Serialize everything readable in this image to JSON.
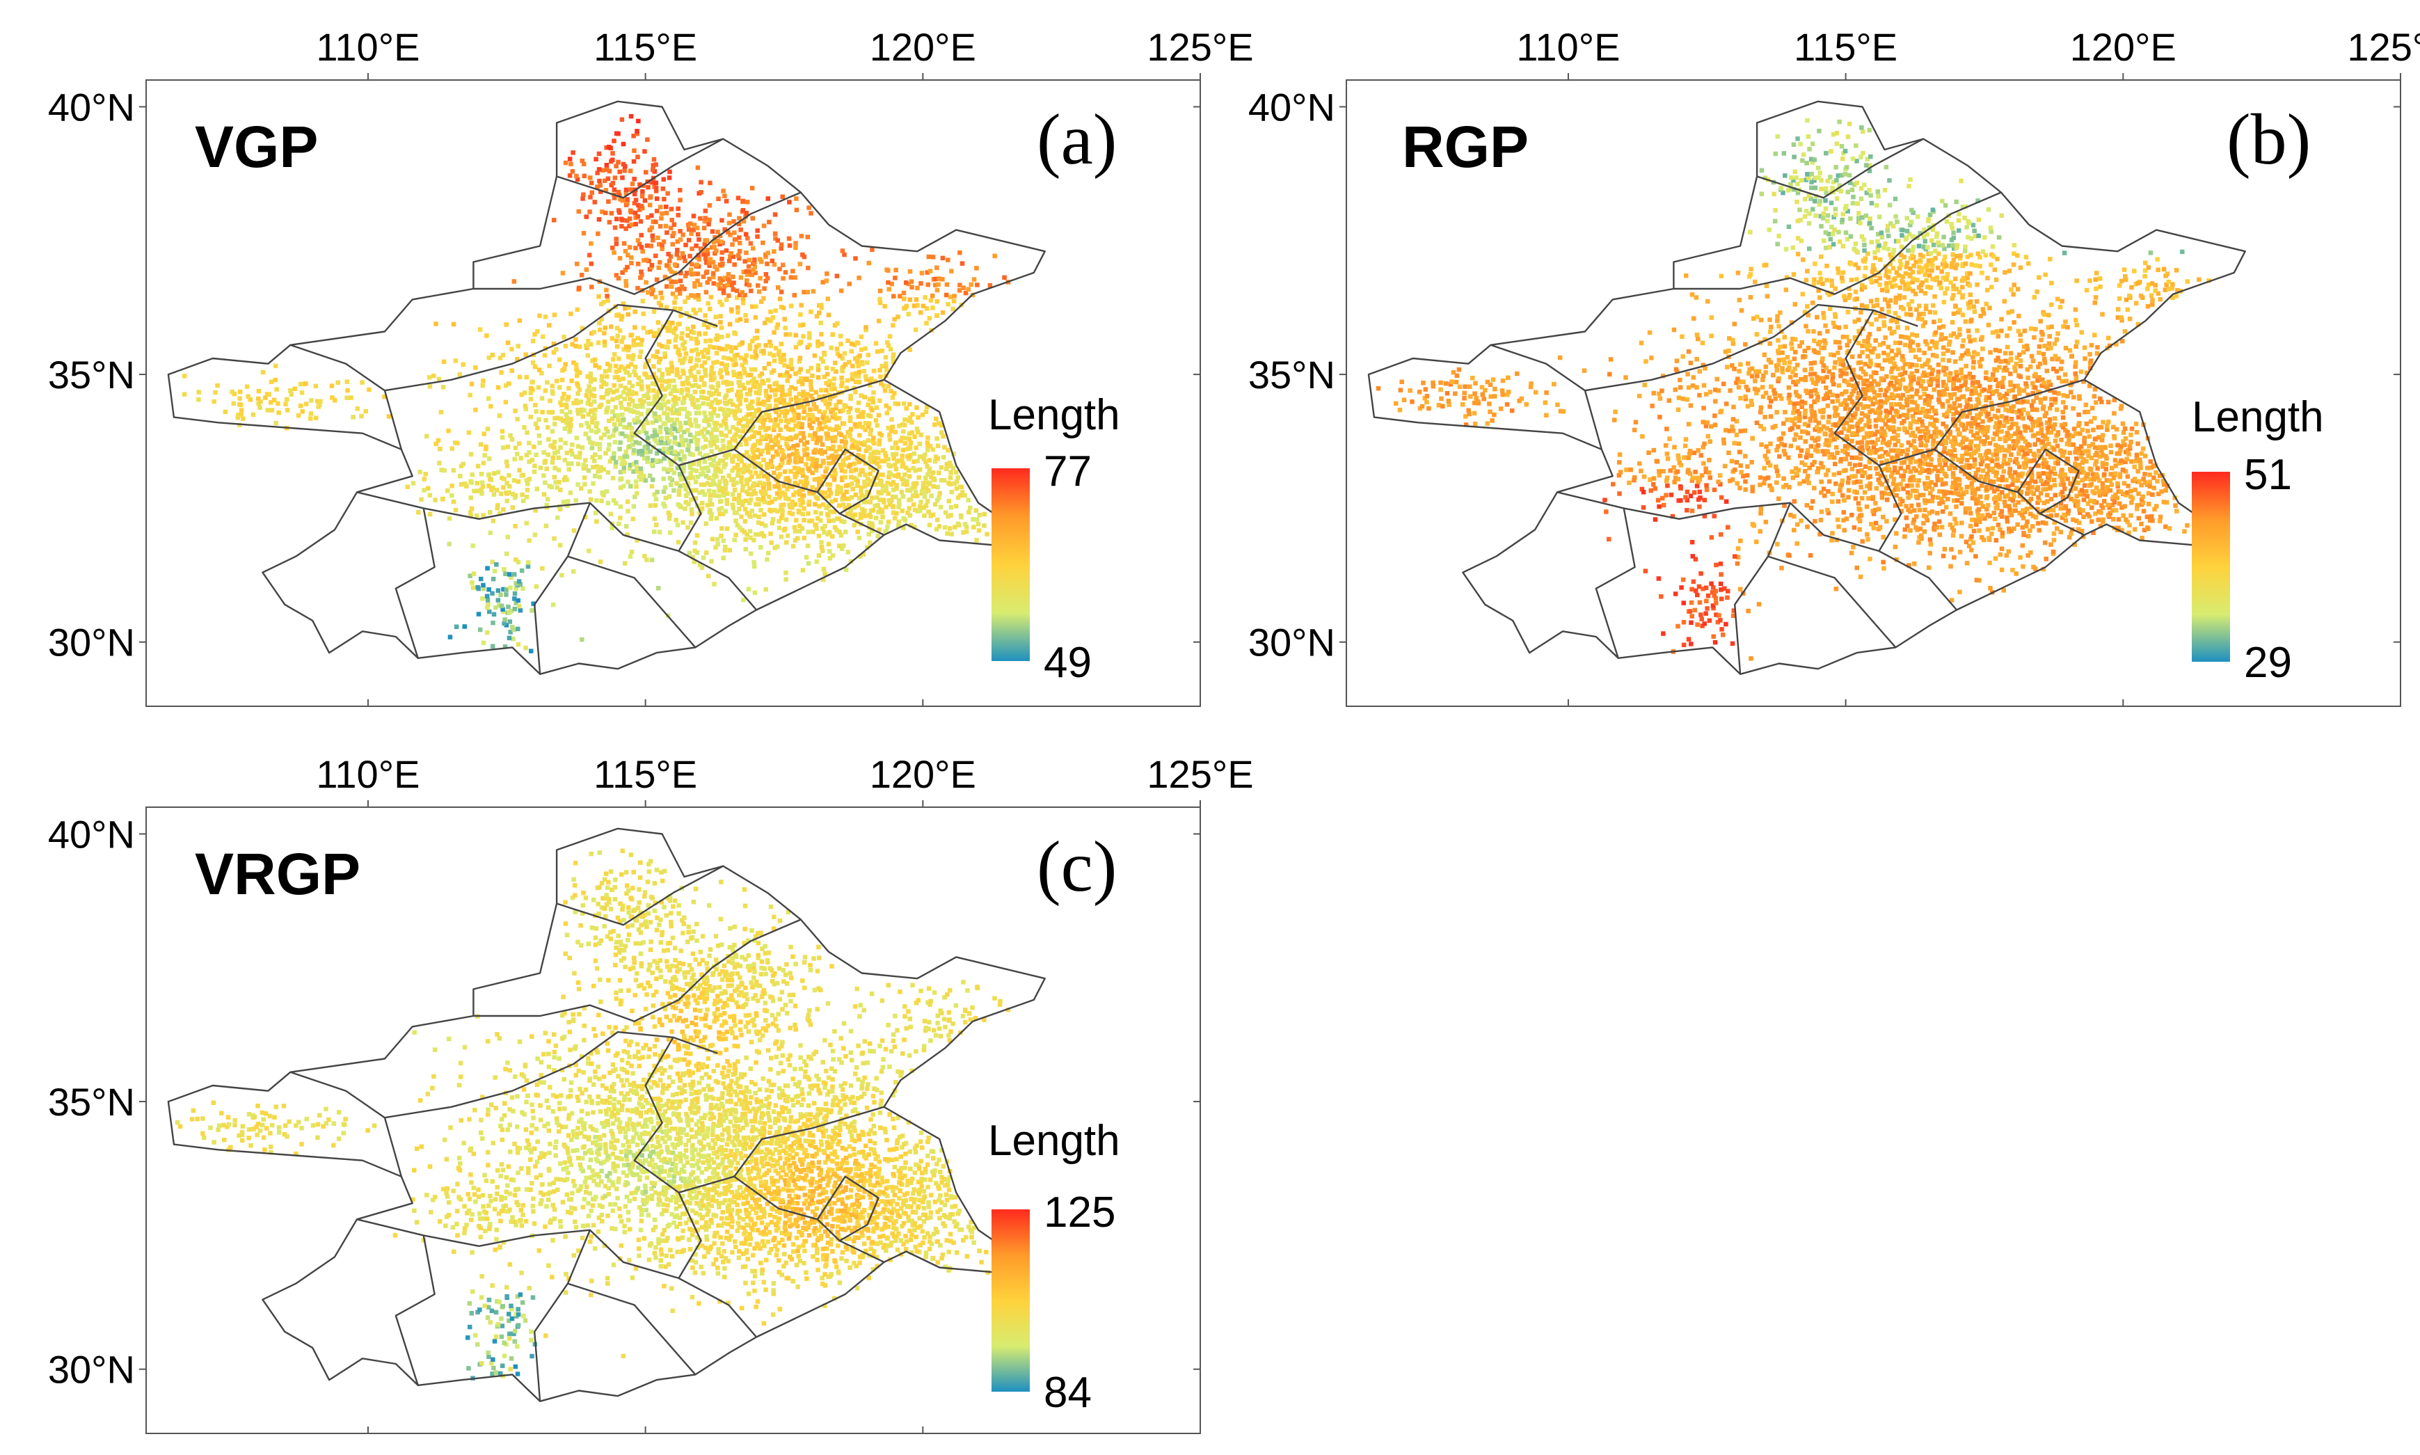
{
  "figure": {
    "lon_ticks": [
      "110°E",
      "115°E",
      "120°E",
      "125°E"
    ],
    "lat_ticks": [
      "40°N",
      "35°N",
      "30°N"
    ],
    "extent": {
      "lon": [
        106,
        125
      ],
      "lat": [
        28.8,
        40.5
      ]
    },
    "colormap": [
      "#1e90c0",
      "#d8ec70",
      "#ffd23c",
      "#ff9a2a",
      "#ff2a1e"
    ]
  },
  "panels": [
    {
      "id": "a",
      "title": "VGP",
      "letter": "(a)",
      "legend": {
        "title": "Length",
        "max": "77",
        "min": "49"
      },
      "pattern": "vgp"
    },
    {
      "id": "b",
      "title": "RGP",
      "letter": "(b)",
      "legend": {
        "title": "Length",
        "max": "51",
        "min": "29"
      },
      "pattern": "rgp"
    },
    {
      "id": "c",
      "title": "VRGP",
      "letter": "(c)",
      "legend": {
        "title": "Length",
        "max": "125",
        "min": "84"
      },
      "pattern": "vrgp"
    }
  ]
}
